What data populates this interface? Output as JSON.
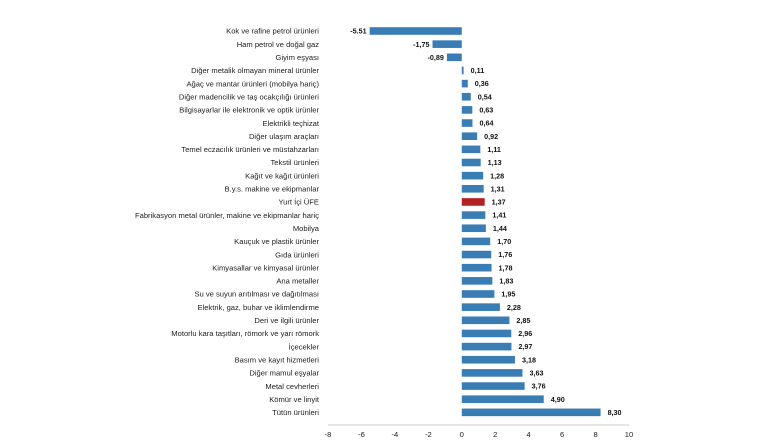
{
  "chart_data": {
    "type": "bar",
    "orientation": "horizontal",
    "title": "",
    "xlabel": "",
    "ylabel": "",
    "xlim": [
      -8,
      10
    ],
    "xticks": [
      -8,
      -6,
      -4,
      -2,
      0,
      2,
      4,
      6,
      8,
      10
    ],
    "grid": false,
    "colors": {
      "default": "#3A7DB4",
      "highlight": "#B22222"
    },
    "highlight_category": "Yurt İçi ÜFE",
    "categories": [
      "Kok ve rafine petrol ürünleri",
      "Ham petrol ve doğal gaz",
      "Giyim eşyası",
      "Diğer metalik olmayan mineral ürünler",
      "Ağaç ve mantar ürünleri (mobilya hariç)",
      "Diğer madencilik ve taş ocakçılığı ürünleri",
      "Bilgisayarlar ile elektronik ve optik ürünler",
      "Elektrikli teçhizat",
      "Diğer ulaşım araçları",
      "Temel eczacılık ürünleri ve müstahzarları",
      "Tekstil ürünleri",
      "Kağıt ve kağıt ürünleri",
      "B.y.s. makine ve ekipmanlar",
      "Yurt İçi ÜFE",
      "Fabrikasyon metal ürünler, makine ve ekipmanlar hariç",
      "Mobilya",
      "Kauçuk ve plastik ürünler",
      "Gıda ürünleri",
      "Kimyasallar ve kimyasal ürünler",
      "Ana metaller",
      "Su ve suyun arıtılması ve dağıtılması",
      "Elektrik, gaz, buhar ve iklimlendirme",
      "Deri ve ilgili ürünler",
      "Motorlu kara taşıtları, römork ve yarı römork",
      "İçecekler",
      "Basım ve kayıt hizmetleri",
      "Diğer mamul eşyalar",
      "Metal cevherleri",
      "Kömür ve linyit",
      "Tütün ürünleri"
    ],
    "values": [
      -5.51,
      -1.75,
      -0.89,
      0.11,
      0.36,
      0.54,
      0.63,
      0.64,
      0.92,
      1.11,
      1.13,
      1.28,
      1.31,
      1.37,
      1.41,
      1.44,
      1.7,
      1.76,
      1.78,
      1.83,
      1.95,
      2.28,
      2.85,
      2.96,
      2.97,
      3.18,
      3.63,
      3.76,
      4.9,
      8.3
    ],
    "value_labels": [
      "-5.51",
      "-1,75",
      "-0,89",
      "0,11",
      "0,36",
      "0,54",
      "0,63",
      "0,64",
      "0,92",
      "1,11",
      "1,13",
      "1,28",
      "1,31",
      "1,37",
      "1,41",
      "1,44",
      "1,70",
      "1,76",
      "1,78",
      "1,83",
      "1,95",
      "2,28",
      "2,85",
      "2,96",
      "2,97",
      "3,18",
      "3,63",
      "3,76",
      "4,90",
      "8,30"
    ]
  }
}
